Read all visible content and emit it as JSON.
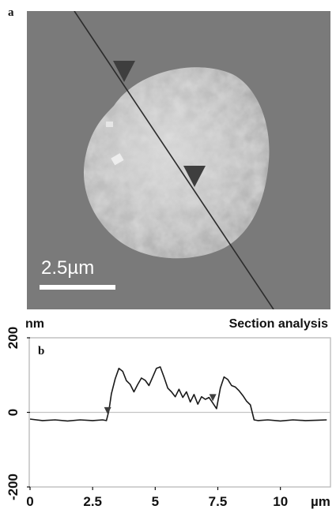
{
  "panel_a": {
    "label": "a",
    "scale_bar": {
      "text": "2.5µm",
      "length_um": 2.5
    },
    "colors": {
      "background": "#7a7a7a",
      "particle": "#c8c8c8",
      "line": "#2c2c2c",
      "markers": "#3e3e3e"
    }
  },
  "panel_b": {
    "label": "b",
    "title": "Section analysis",
    "y_unit": "nm",
    "x_unit": "µm",
    "colors": {
      "trace": "#1a1a1a",
      "frame": "#bdbdbd",
      "zero_line": "#c4c4c4",
      "markers": "#3e3e3e"
    }
  },
  "chart_data": {
    "type": "line",
    "title": "Section analysis",
    "xlabel": "µm",
    "ylabel": "nm",
    "xlim": [
      0,
      12
    ],
    "ylim": [
      -200,
      200
    ],
    "x_ticks": [
      0,
      2.5,
      5,
      7.5,
      10
    ],
    "x_tick_labels": [
      "0",
      "2.5",
      "5",
      "7.5",
      "10"
    ],
    "y_ticks": [
      200,
      0,
      -200
    ],
    "y_tick_labels": [
      "200",
      "0",
      "-200"
    ],
    "grid": false,
    "series": [
      {
        "x": [
          0,
          0.5,
          1,
          1.5,
          2,
          2.5,
          2.9,
          3.05,
          3.15,
          3.25,
          3.4,
          3.55,
          3.7,
          3.85,
          4.0,
          4.15,
          4.3,
          4.45,
          4.6,
          4.75,
          4.9,
          5.05,
          5.2,
          5.35,
          5.5,
          5.65,
          5.8,
          5.95,
          6.1,
          6.25,
          6.4,
          6.55,
          6.7,
          6.85,
          7.0,
          7.15,
          7.3,
          7.45,
          7.6,
          7.75,
          7.9,
          8.05,
          8.2,
          8.35,
          8.5,
          8.65,
          8.8,
          8.95,
          9.1,
          9.5,
          10,
          10.5,
          11,
          11.5,
          11.85
        ],
        "y": [
          -18,
          -22,
          -20,
          -23,
          -20,
          -22,
          -20,
          -22,
          5,
          50,
          90,
          118,
          110,
          85,
          75,
          55,
          75,
          92,
          86,
          72,
          95,
          118,
          122,
          95,
          65,
          55,
          42,
          62,
          40,
          55,
          28,
          48,
          22,
          42,
          35,
          40,
          25,
          10,
          65,
          95,
          88,
          72,
          68,
          58,
          45,
          30,
          20,
          -20,
          -22,
          -20,
          -23,
          -20,
          -22,
          -21,
          -20
        ]
      }
    ],
    "markers": [
      {
        "x": 3.1,
        "y": -5
      },
      {
        "x": 7.3,
        "y": 30
      }
    ]
  }
}
